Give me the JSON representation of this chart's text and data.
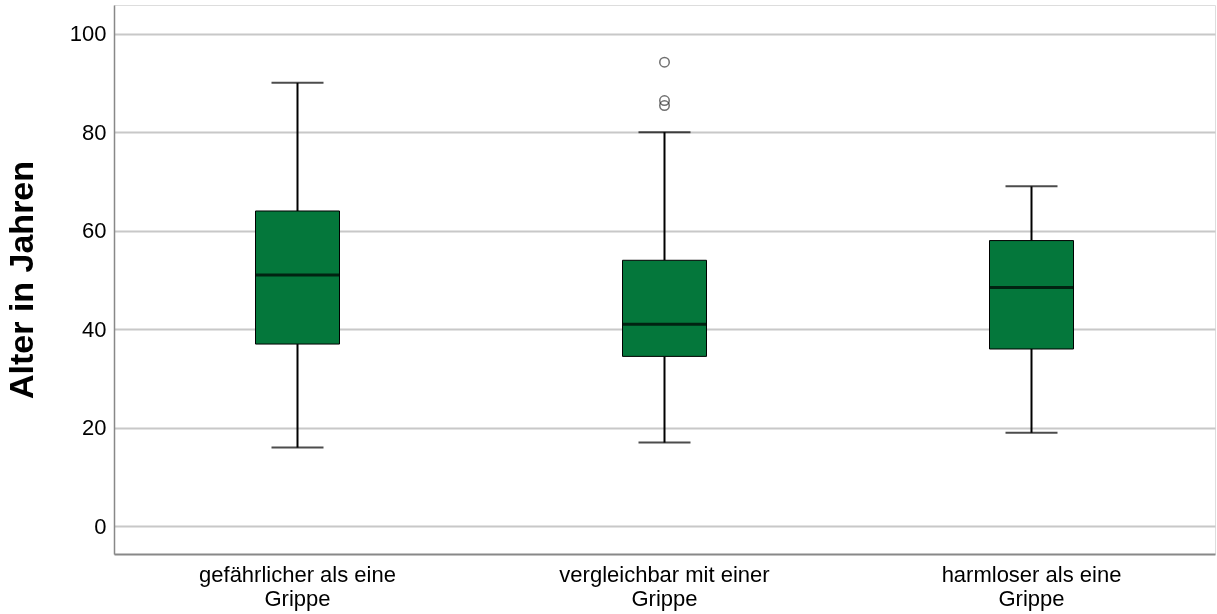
{
  "chart_data": {
    "type": "box",
    "ylabel": "Alter in Jahren",
    "categories": [
      "gefährlicher als eine Grippe",
      "vergleichbar mit einer Grippe",
      "harmloser als eine Grippe"
    ],
    "series": [
      {
        "color": "#04773b",
        "boxes": [
          {
            "low": 16,
            "q1": 37,
            "median": 51,
            "q3": 64,
            "high": 90
          },
          {
            "low": 17,
            "q1": 34.5,
            "median": 41,
            "q3": 54,
            "high": 80,
            "outliers": [
              94.2,
              86.4,
              85.4
            ]
          },
          {
            "low": 19,
            "q1": 36,
            "median": 48.5,
            "q3": 58,
            "high": 69
          }
        ]
      }
    ],
    "ylim": [
      -5.6,
      105.8
    ],
    "yticks": [
      0,
      20,
      40,
      60,
      80,
      100
    ],
    "grid": "y"
  }
}
